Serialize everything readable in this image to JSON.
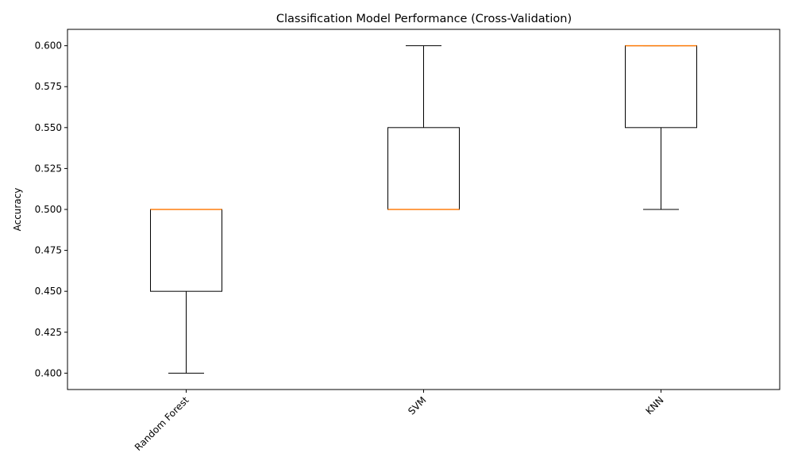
{
  "chart_data": {
    "type": "boxplot",
    "title": "Classification Model Performance (Cross-Validation)",
    "xlabel": "",
    "ylabel": "Accuracy",
    "ylim": [
      0.39,
      0.61
    ],
    "yticks": [
      0.4,
      0.425,
      0.45,
      0.475,
      0.5,
      0.525,
      0.55,
      0.575,
      0.6
    ],
    "ytick_labels": [
      "0.400",
      "0.425",
      "0.450",
      "0.475",
      "0.500",
      "0.525",
      "0.550",
      "0.575",
      "0.600"
    ],
    "xtick_rotation_deg": -45,
    "grid": false,
    "categories": [
      "Random Forest",
      "SVM",
      "KNN"
    ],
    "boxes": [
      {
        "category": "Random Forest",
        "whisker_low": 0.4,
        "q1": 0.45,
        "median": 0.5,
        "q3": 0.5,
        "whisker_high": 0.5
      },
      {
        "category": "SVM",
        "whisker_low": 0.5,
        "q1": 0.5,
        "median": 0.5,
        "q3": 0.55,
        "whisker_high": 0.6
      },
      {
        "category": "KNN",
        "whisker_low": 0.5,
        "q1": 0.55,
        "median": 0.6,
        "q3": 0.6,
        "whisker_high": 0.6
      }
    ],
    "colors": {
      "box": "#000000",
      "median": "#ff7f0e",
      "axes": "#000000"
    }
  }
}
